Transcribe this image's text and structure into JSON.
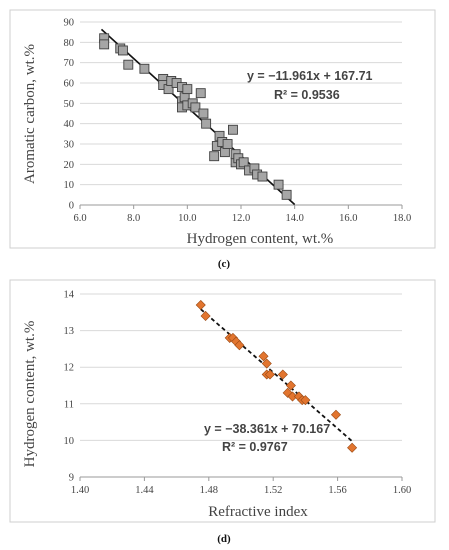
{
  "chart_data": [
    {
      "type": "scatter",
      "panel_label": "(c)",
      "xlabel": "Hydrogen content, wt.%",
      "ylabel": "Aromatic carbon, wt.%",
      "xlim": [
        6.0,
        18.0
      ],
      "ylim": [
        0,
        90
      ],
      "xticks": [
        "6.0",
        "8.0",
        "10.0",
        "12.0",
        "14.0",
        "16.0",
        "18.0"
      ],
      "yticks": [
        "0",
        "10",
        "20",
        "30",
        "40",
        "50",
        "60",
        "70",
        "80",
        "90"
      ],
      "grid": "horizontal",
      "marker": "square",
      "marker_color": "#a6a6a6",
      "equation": "y = −11.961x + 167.71",
      "r_squared": "R² = 0.9536",
      "trendline": {
        "slope": -11.961,
        "intercept": 167.71,
        "x_range": [
          6.8,
          14.0
        ],
        "style": "solid"
      },
      "points": [
        [
          6.9,
          82
        ],
        [
          6.9,
          79
        ],
        [
          7.5,
          77
        ],
        [
          7.6,
          76
        ],
        [
          7.8,
          69
        ],
        [
          8.4,
          67
        ],
        [
          9.1,
          62
        ],
        [
          9.1,
          59
        ],
        [
          9.3,
          57
        ],
        [
          9.4,
          61
        ],
        [
          9.6,
          60
        ],
        [
          9.8,
          58
        ],
        [
          9.8,
          51
        ],
        [
          9.8,
          48
        ],
        [
          9.9,
          53
        ],
        [
          10.0,
          57
        ],
        [
          10.0,
          49
        ],
        [
          10.2,
          50
        ],
        [
          10.3,
          48
        ],
        [
          10.5,
          55
        ],
        [
          10.6,
          45
        ],
        [
          10.7,
          40
        ],
        [
          11.0,
          24
        ],
        [
          11.1,
          29
        ],
        [
          11.2,
          34
        ],
        [
          11.3,
          31
        ],
        [
          11.4,
          26
        ],
        [
          11.5,
          30
        ],
        [
          11.7,
          37
        ],
        [
          11.8,
          21
        ],
        [
          11.8,
          25
        ],
        [
          11.9,
          23
        ],
        [
          12.0,
          20
        ],
        [
          12.1,
          21
        ],
        [
          12.3,
          17
        ],
        [
          12.5,
          18
        ],
        [
          12.6,
          15
        ],
        [
          12.8,
          14
        ],
        [
          13.4,
          10
        ],
        [
          13.7,
          5
        ]
      ]
    },
    {
      "type": "scatter",
      "panel_label": "(d)",
      "xlabel": "Refractive index",
      "ylabel": "Hydrogen content, wt.%",
      "xlim": [
        1.4,
        1.6
      ],
      "ylim": [
        9,
        14
      ],
      "xticks": [
        "1.40",
        "1.44",
        "1.48",
        "1.52",
        "1.56",
        "1.60"
      ],
      "yticks": [
        "9",
        "10",
        "11",
        "12",
        "13",
        "14"
      ],
      "grid": "horizontal",
      "marker": "diamond",
      "marker_color": "#e2752f",
      "equation": "y = −38.361x + 70.167",
      "r_squared": "R² = 0.9767",
      "trendline": {
        "slope": -38.361,
        "intercept": 70.167,
        "x_range": [
          1.475,
          1.569
        ],
        "style": "dashed"
      },
      "points": [
        [
          1.475,
          13.7
        ],
        [
          1.478,
          13.4
        ],
        [
          1.493,
          12.8
        ],
        [
          1.495,
          12.8
        ],
        [
          1.497,
          12.7
        ],
        [
          1.499,
          12.6
        ],
        [
          1.514,
          12.3
        ],
        [
          1.516,
          12.1
        ],
        [
          1.516,
          11.8
        ],
        [
          1.518,
          11.8
        ],
        [
          1.526,
          11.8
        ],
        [
          1.529,
          11.3
        ],
        [
          1.531,
          11.5
        ],
        [
          1.532,
          11.2
        ],
        [
          1.536,
          11.2
        ],
        [
          1.538,
          11.1
        ],
        [
          1.54,
          11.1
        ],
        [
          1.559,
          10.7
        ],
        [
          1.569,
          9.8
        ]
      ]
    }
  ]
}
